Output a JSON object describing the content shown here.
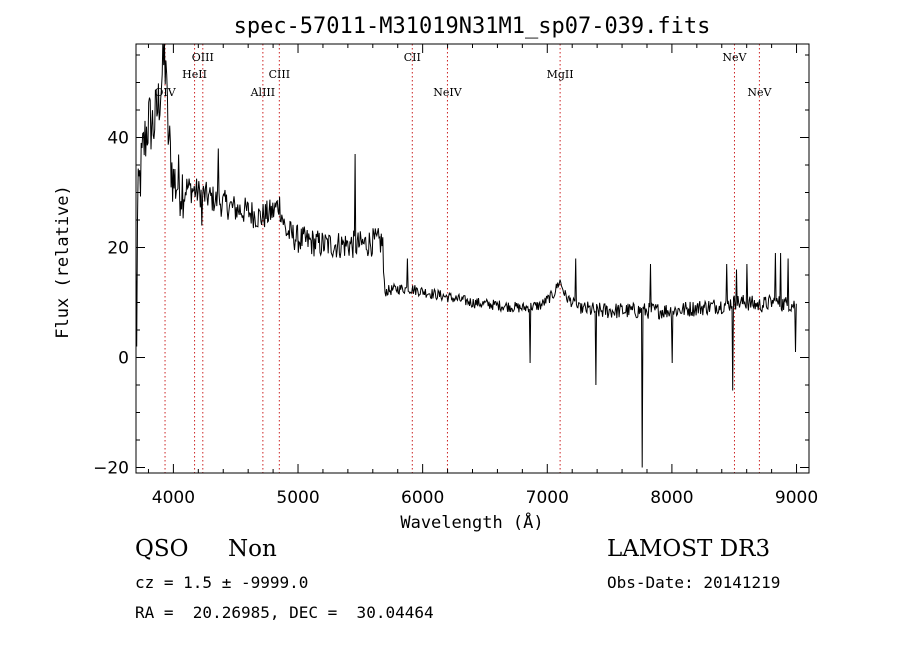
{
  "chart_data": {
    "type": "line",
    "title": "spec-57011-M31019N31M1_sp07-039.fits",
    "xlabel": "Wavelength (Å)",
    "ylabel": "Flux (relative)",
    "xlim": [
      3700,
      9100
    ],
    "ylim": [
      -21,
      57
    ],
    "xticks": [
      4000,
      5000,
      6000,
      7000,
      8000,
      9000
    ],
    "yticks": [
      -20,
      0,
      20,
      40
    ],
    "grid": false,
    "line_color": "#000000",
    "marker_color": "#cc2222",
    "spectrum_anchors": [
      [
        3700,
        14
      ],
      [
        3720,
        30
      ],
      [
        3760,
        38
      ],
      [
        3800,
        43
      ],
      [
        3840,
        42
      ],
      [
        3880,
        46
      ],
      [
        3930,
        55
      ],
      [
        3960,
        40
      ],
      [
        4000,
        32
      ],
      [
        4100,
        31
      ],
      [
        4200,
        30
      ],
      [
        4300,
        29
      ],
      [
        4400,
        28
      ],
      [
        4500,
        27
      ],
      [
        4600,
        26.5
      ],
      [
        4700,
        25.5
      ],
      [
        4800,
        26.5
      ],
      [
        4850,
        28
      ],
      [
        4900,
        23
      ],
      [
        5000,
        21.5
      ],
      [
        5100,
        21
      ],
      [
        5200,
        20.5
      ],
      [
        5300,
        20.5
      ],
      [
        5400,
        20.5
      ],
      [
        5500,
        20.5
      ],
      [
        5600,
        21
      ],
      [
        5680,
        21
      ],
      [
        5690,
        12
      ],
      [
        5800,
        12.5
      ],
      [
        5900,
        12.5
      ],
      [
        6000,
        12
      ],
      [
        6200,
        11
      ],
      [
        6400,
        10
      ],
      [
        6600,
        9.5
      ],
      [
        6800,
        9
      ],
      [
        6950,
        9.5
      ],
      [
        7050,
        11.5
      ],
      [
        7100,
        14
      ],
      [
        7150,
        11
      ],
      [
        7250,
        9
      ],
      [
        7400,
        8.5
      ],
      [
        7600,
        8.5
      ],
      [
        7800,
        8.5
      ],
      [
        8000,
        8.5
      ],
      [
        8200,
        9
      ],
      [
        8400,
        9.5
      ],
      [
        8500,
        10
      ],
      [
        8600,
        10
      ],
      [
        8700,
        9.5
      ],
      [
        8800,
        10
      ],
      [
        9000,
        9.5
      ]
    ],
    "spikes": [
      [
        3705,
        2
      ],
      [
        3940,
        54
      ],
      [
        4230,
        24
      ],
      [
        4360,
        38
      ],
      [
        5460,
        37
      ],
      [
        5880,
        18
      ],
      [
        6860,
        -1
      ],
      [
        7230,
        18
      ],
      [
        7390,
        -5
      ],
      [
        7760,
        -20
      ],
      [
        7830,
        17
      ],
      [
        8000,
        -1
      ],
      [
        8440,
        17
      ],
      [
        8490,
        -6
      ],
      [
        8520,
        16
      ],
      [
        8600,
        17
      ],
      [
        8830,
        19
      ],
      [
        8870,
        19
      ],
      [
        8930,
        18
      ],
      [
        8990,
        1
      ]
    ],
    "lines": [
      {
        "label": "OIV",
        "x": 3933,
        "tier": 3
      },
      {
        "label": "HeII",
        "x": 4170,
        "tier": 2
      },
      {
        "label": "OIII",
        "x": 4236,
        "tier": 1
      },
      {
        "label": "AlIII",
        "x": 4718,
        "tier": 3
      },
      {
        "label": "CIII",
        "x": 4850,
        "tier": 2
      },
      {
        "label": "CII",
        "x": 5917,
        "tier": 1
      },
      {
        "label": "NeIV",
        "x": 6199,
        "tier": 3
      },
      {
        "label": "MgII",
        "x": 7103,
        "tier": 2
      },
      {
        "label": "NeV",
        "x": 8502,
        "tier": 1
      },
      {
        "label": "NeV",
        "x": 8702,
        "tier": 3
      }
    ]
  },
  "footer": {
    "class_label": "QSO",
    "subclass_label": "Non",
    "survey": "LAMOST DR3",
    "cz": "cz = 1.5 ± -9999.0",
    "obs_date": "Obs-Date: 20141219",
    "coords": "RA =  20.26985, DEC =  30.04464"
  }
}
